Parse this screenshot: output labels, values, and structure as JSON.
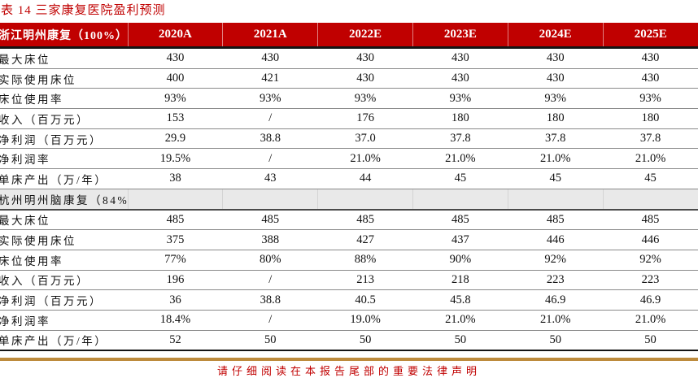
{
  "title": "表 14 三家康复医院盈利预测",
  "table": {
    "col_headers": [
      "浙江明州康复（100%）",
      "2020A",
      "2021A",
      "2022E",
      "2023E",
      "2024E",
      "2025E"
    ],
    "sections": [
      {
        "header": null,
        "rows": [
          {
            "label": "最大床位",
            "values": [
              "430",
              "430",
              "430",
              "430",
              "430",
              "430"
            ]
          },
          {
            "label": "实际使用床位",
            "values": [
              "400",
              "421",
              "430",
              "430",
              "430",
              "430"
            ]
          },
          {
            "label": "床位使用率",
            "values": [
              "93%",
              "93%",
              "93%",
              "93%",
              "93%",
              "93%"
            ]
          },
          {
            "label": "收入（百万元）",
            "values": [
              "153",
              "/",
              "176",
              "180",
              "180",
              "180"
            ]
          },
          {
            "label": "净利润（百万元）",
            "values": [
              "29.9",
              "38.8",
              "37.0",
              "37.8",
              "37.8",
              "37.8"
            ]
          },
          {
            "label": "净利润率",
            "values": [
              "19.5%",
              "/",
              "21.0%",
              "21.0%",
              "21.0%",
              "21.0%"
            ]
          },
          {
            "label": "单床产出（万/年）",
            "values": [
              "38",
              "43",
              "44",
              "45",
              "45",
              "45"
            ]
          }
        ]
      },
      {
        "header": "杭州明州脑康复（84%）",
        "rows": [
          {
            "label": "最大床位",
            "values": [
              "485",
              "485",
              "485",
              "485",
              "485",
              "485"
            ]
          },
          {
            "label": "实际使用床位",
            "values": [
              "375",
              "388",
              "427",
              "437",
              "446",
              "446"
            ]
          },
          {
            "label": "床位使用率",
            "values": [
              "77%",
              "80%",
              "88%",
              "90%",
              "92%",
              "92%"
            ]
          },
          {
            "label": "收入（百万元）",
            "values": [
              "196",
              "/",
              "213",
              "218",
              "223",
              "223"
            ]
          },
          {
            "label": "净利润（百万元）",
            "values": [
              "36",
              "38.8",
              "40.5",
              "45.8",
              "46.9",
              "46.9"
            ]
          },
          {
            "label": "净利润率",
            "values": [
              "18.4%",
              "/",
              "19.0%",
              "21.0%",
              "21.0%",
              "21.0%"
            ]
          },
          {
            "label": "单床产出（万/年）",
            "values": [
              "52",
              "50",
              "50",
              "50",
              "50",
              "50"
            ]
          }
        ]
      }
    ]
  },
  "footer": {
    "disclaimer": "请仔细阅读在本报告尾部的重要法律声明"
  },
  "colors": {
    "accent_red": "#c00000",
    "gold_line": "#bd8b3d",
    "section_gray": "#e9e9e9"
  }
}
